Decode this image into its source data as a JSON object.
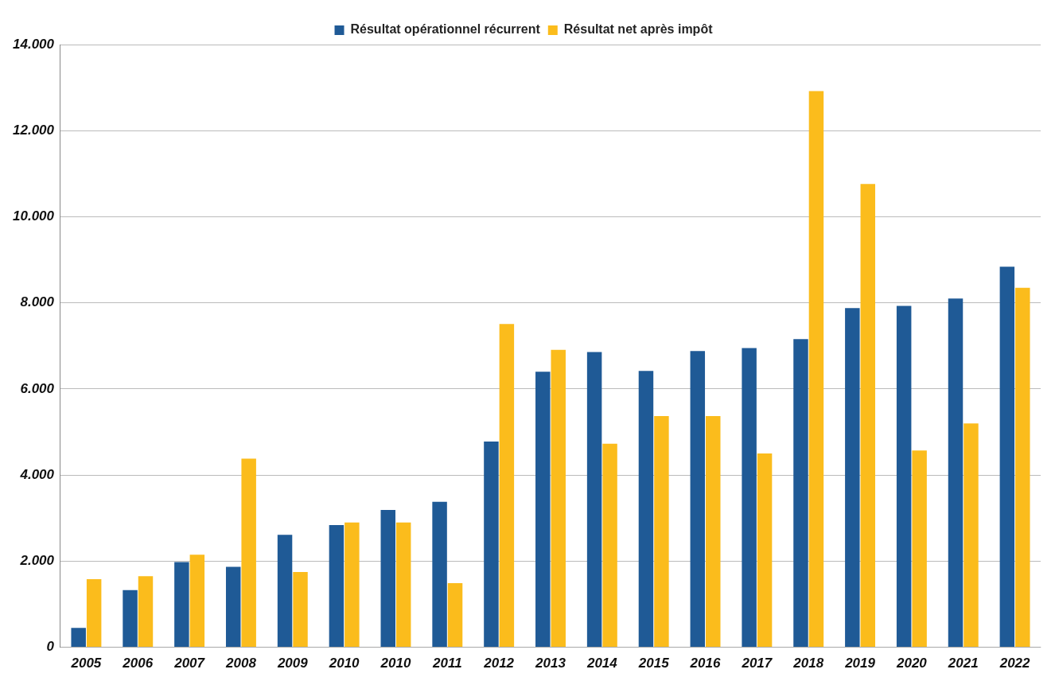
{
  "chart_data": {
    "type": "bar",
    "categories": [
      "2005",
      "2006",
      "2007",
      "2008",
      "2009",
      "2010",
      "2010",
      "2011",
      "2012",
      "2013",
      "2014",
      "2015",
      "2016",
      "2017",
      "2018",
      "2019",
      "2020",
      "2021",
      "2022"
    ],
    "series": [
      {
        "name": "Résultat opérationnel récurrent",
        "color": "#1f5a96",
        "values": [
          450,
          1330,
          1980,
          1870,
          2610,
          2840,
          3190,
          3380,
          4780,
          6400,
          6860,
          6420,
          6880,
          6950,
          7160,
          7880,
          7930,
          8100,
          8840
        ]
      },
      {
        "name": "Résultat net après impôt",
        "color": "#fbbc1c",
        "values": [
          1580,
          1650,
          2150,
          4380,
          1750,
          2900,
          2900,
          1490,
          7510,
          6910,
          4730,
          5370,
          5370,
          4500,
          12920,
          10760,
          4570,
          5200,
          8350
        ]
      }
    ],
    "ylim": [
      0,
      14000
    ],
    "yticks": [
      {
        "value": 0,
        "label": "0"
      },
      {
        "value": 2000,
        "label": "2.000"
      },
      {
        "value": 4000,
        "label": "4.000"
      },
      {
        "value": 6000,
        "label": "6.000"
      },
      {
        "value": 8000,
        "label": "8.000"
      },
      {
        "value": 10000,
        "label": "10.000"
      },
      {
        "value": 12000,
        "label": "12.000"
      },
      {
        "value": 14000,
        "label": "14.000"
      }
    ],
    "grid": "y",
    "legend": "top"
  }
}
